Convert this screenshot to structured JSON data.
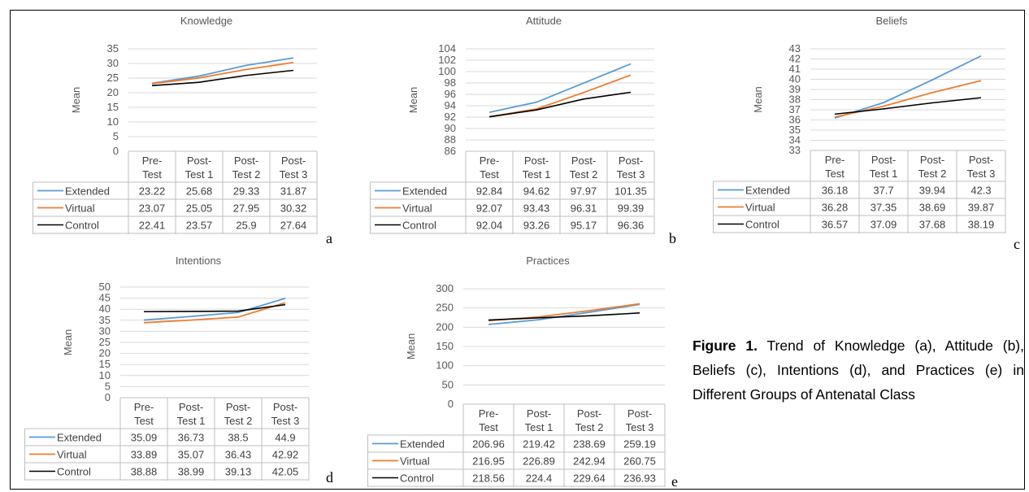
{
  "colors": {
    "extended": "#5b9bd5",
    "virtual": "#ed7d31",
    "control": "#000000",
    "grid": "#d9d9d9",
    "border": "#bfbfbf"
  },
  "caption": {
    "label": "Figure 1.",
    "text": " Trend of Knowledge (a), Attitude (b), Beliefs (c), Intentions (d), and Practices (e) in Different Groups of Antenatal Class"
  },
  "chart_data": [
    {
      "type": "line",
      "letter": "a",
      "title": "Knowledge",
      "ylabel": "Mean",
      "categories": [
        [
          "Pre-",
          "Test"
        ],
        [
          "Post-",
          "Test 1"
        ],
        [
          "Post-",
          "Test 2"
        ],
        [
          "Post-",
          "Test 3"
        ]
      ],
      "ylim": [
        0,
        35
      ],
      "yticks": [
        0,
        5,
        10,
        15,
        20,
        25,
        30,
        35
      ],
      "grid": true,
      "legend": "data-table",
      "series": [
        {
          "name": "Extended",
          "color": "#5b9bd5",
          "values": [
            23.22,
            25.68,
            29.33,
            31.87
          ],
          "labels": [
            "23.22",
            "25.68",
            "29.33",
            "31.87"
          ]
        },
        {
          "name": "Virtual",
          "color": "#ed7d31",
          "values": [
            23.07,
            25.05,
            27.95,
            30.32
          ],
          "labels": [
            "23.07",
            "25.05",
            "27.95",
            "30.32"
          ]
        },
        {
          "name": "Control",
          "color": "#000000",
          "values": [
            22.41,
            23.57,
            25.9,
            27.64
          ],
          "labels": [
            "22.41",
            "23.57",
            "25.9",
            "27.64"
          ]
        }
      ]
    },
    {
      "type": "line",
      "letter": "b",
      "title": "Attitude",
      "ylabel": "Mean",
      "categories": [
        [
          "Pre-",
          "Test"
        ],
        [
          "Post-",
          "Test 1"
        ],
        [
          "Post-",
          "Test 2"
        ],
        [
          "Post-",
          "Test 3"
        ]
      ],
      "ylim": [
        86,
        104
      ],
      "yticks": [
        86,
        88,
        90,
        92,
        94,
        96,
        98,
        100,
        102,
        104
      ],
      "grid": true,
      "legend": "data-table",
      "series": [
        {
          "name": "Extended",
          "color": "#5b9bd5",
          "values": [
            92.84,
            94.62,
            97.97,
            101.35
          ],
          "labels": [
            "92.84",
            "94.62",
            "97.97",
            "101.35"
          ]
        },
        {
          "name": "Virtual",
          "color": "#ed7d31",
          "values": [
            92.07,
            93.43,
            96.31,
            99.39
          ],
          "labels": [
            "92.07",
            "93.43",
            "96.31",
            "99.39"
          ]
        },
        {
          "name": "Control",
          "color": "#000000",
          "values": [
            92.04,
            93.26,
            95.17,
            96.36
          ],
          "labels": [
            "92.04",
            "93.26",
            "95.17",
            "96.36"
          ]
        }
      ]
    },
    {
      "type": "line",
      "letter": "c",
      "title": "Beliefs",
      "ylabel": "Mean",
      "categories": [
        [
          "Pre-",
          "Test"
        ],
        [
          "Post-",
          "Test 1"
        ],
        [
          "Post-",
          "Test 2"
        ],
        [
          "Post-",
          "Test 3"
        ]
      ],
      "ylim": [
        33,
        43
      ],
      "yticks": [
        33,
        34,
        35,
        36,
        37,
        38,
        39,
        40,
        41,
        42,
        43
      ],
      "grid": true,
      "legend": "data-table",
      "series": [
        {
          "name": "Extended",
          "color": "#5b9bd5",
          "values": [
            36.18,
            37.7,
            39.94,
            42.3
          ],
          "labels": [
            "36.18",
            "37.7",
            "39.94",
            "42.3"
          ]
        },
        {
          "name": "Virtual",
          "color": "#ed7d31",
          "values": [
            36.28,
            37.35,
            38.69,
            39.87
          ],
          "labels": [
            "36.28",
            "37.35",
            "38.69",
            "39.87"
          ]
        },
        {
          "name": "Control",
          "color": "#000000",
          "values": [
            36.57,
            37.09,
            37.68,
            38.19
          ],
          "labels": [
            "36.57",
            "37.09",
            "37.68",
            "38.19"
          ]
        }
      ]
    },
    {
      "type": "line",
      "letter": "d",
      "title": "Intentions",
      "ylabel": "Mean",
      "categories": [
        [
          "Pre-",
          "Test"
        ],
        [
          "Post-",
          "Test 1"
        ],
        [
          "Post-",
          "Test 2"
        ],
        [
          "Post-",
          "Test 3"
        ]
      ],
      "ylim": [
        0,
        50
      ],
      "yticks": [
        0,
        5,
        10,
        15,
        20,
        25,
        30,
        35,
        40,
        45,
        50
      ],
      "grid": true,
      "legend": "data-table",
      "series": [
        {
          "name": "Extended",
          "color": "#5b9bd5",
          "values": [
            35.09,
            36.73,
            38.5,
            44.9
          ],
          "labels": [
            "35.09",
            "36.73",
            "38.5",
            "44.9"
          ]
        },
        {
          "name": "Virtual",
          "color": "#ed7d31",
          "values": [
            33.89,
            35.07,
            36.43,
            42.92
          ],
          "labels": [
            "33.89",
            "35.07",
            "36.43",
            "42.92"
          ]
        },
        {
          "name": "Control",
          "color": "#000000",
          "values": [
            38.88,
            38.99,
            39.13,
            42.05
          ],
          "labels": [
            "38.88",
            "38.99",
            "39.13",
            "42.05"
          ]
        }
      ]
    },
    {
      "type": "line",
      "letter": "e",
      "title": "Practices",
      "ylabel": "Mean",
      "categories": [
        [
          "Pre-",
          "Test"
        ],
        [
          "Post-",
          "Test 1"
        ],
        [
          "Post-",
          "Test 2"
        ],
        [
          "Post-",
          "Test 3"
        ]
      ],
      "ylim": [
        0,
        300
      ],
      "yticks": [
        0,
        50,
        100,
        150,
        200,
        250,
        300
      ],
      "grid": true,
      "legend": "data-table",
      "series": [
        {
          "name": "Extended",
          "color": "#5b9bd5",
          "values": [
            206.96,
            219.42,
            238.69,
            259.19
          ],
          "labels": [
            "206.96",
            "219.42",
            "238.69",
            "259.19"
          ]
        },
        {
          "name": "Virtual",
          "color": "#ed7d31",
          "values": [
            216.95,
            226.89,
            242.94,
            260.75
          ],
          "labels": [
            "216.95",
            "226.89",
            "242.94",
            "260.75"
          ]
        },
        {
          "name": "Control",
          "color": "#000000",
          "values": [
            218.56,
            224.4,
            229.64,
            236.93
          ],
          "labels": [
            "218.56",
            "224.4",
            "229.64",
            "236.93"
          ]
        }
      ]
    }
  ]
}
